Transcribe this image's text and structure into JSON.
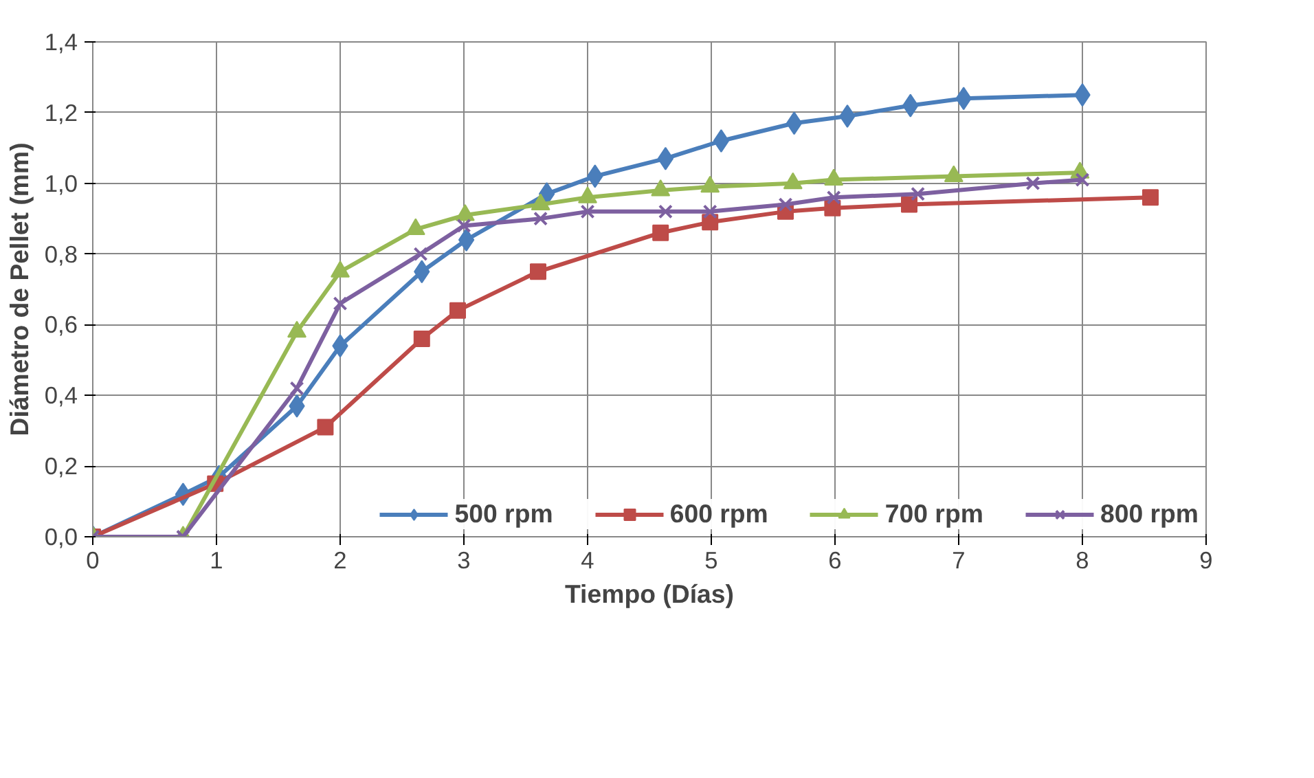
{
  "chart_data": {
    "type": "line",
    "xlabel": "Tiempo (Días)",
    "ylabel": "Diámetro de Pellet (mm)",
    "xlim": [
      0,
      9
    ],
    "xticks": [
      0,
      1,
      2,
      3,
      4,
      5,
      6,
      7,
      8,
      9
    ],
    "ylim": [
      0,
      1.4
    ],
    "yticks": [
      {
        "value": 0,
        "label": "0,0"
      },
      {
        "value": 0.2,
        "label": "0,2"
      },
      {
        "value": 0.4,
        "label": "0,4"
      },
      {
        "value": 0.6,
        "label": "0,6"
      },
      {
        "value": 0.8,
        "label": "0,8"
      },
      {
        "value": 1.0,
        "label": "1,0"
      },
      {
        "value": 1.2,
        "label": "1,2"
      },
      {
        "value": 1.4,
        "label": "1,4"
      }
    ],
    "grid": true,
    "legend": "bottom right",
    "series": [
      {
        "name": "500 rpm",
        "color": "#4a7ebb",
        "marker": "diamond",
        "x": [
          0,
          0.73,
          1.02,
          1.65,
          2.0,
          2.66,
          3.02,
          3.67,
          4.06,
          4.63,
          5.08,
          5.67,
          6.1,
          6.61,
          7.04,
          8.0
        ],
        "values": [
          0,
          0.12,
          0.17,
          0.37,
          0.54,
          0.75,
          0.84,
          0.97,
          1.02,
          1.07,
          1.12,
          1.17,
          1.19,
          1.22,
          1.24,
          1.25
        ]
      },
      {
        "name": "600 rpm",
        "color": "#be4b48",
        "marker": "square",
        "x": [
          0,
          0.99,
          1.88,
          2.66,
          2.95,
          3.6,
          4.59,
          4.99,
          5.6,
          5.98,
          6.6,
          8.55
        ],
        "values": [
          0,
          0.15,
          0.31,
          0.56,
          0.64,
          0.75,
          0.86,
          0.89,
          0.92,
          0.93,
          0.94,
          0.96
        ]
      },
      {
        "name": "700 rpm",
        "color": "#98b954",
        "marker": "triangle",
        "x": [
          0,
          0.73,
          1.65,
          2.0,
          2.61,
          3.01,
          3.62,
          4.0,
          4.59,
          4.99,
          5.66,
          5.99,
          6.96,
          7.98
        ],
        "values": [
          0,
          0,
          0.58,
          0.75,
          0.87,
          0.91,
          0.94,
          0.96,
          0.98,
          0.99,
          1.0,
          1.01,
          1.02,
          1.03
        ]
      },
      {
        "name": "800 rpm",
        "color": "#7d60a0",
        "marker": "cross",
        "x": [
          0,
          0.73,
          1.65,
          2.0,
          2.65,
          3.0,
          3.62,
          4.0,
          4.63,
          4.99,
          5.6,
          5.99,
          6.67,
          7.6,
          8.0
        ],
        "values": [
          0,
          0,
          0.42,
          0.66,
          0.8,
          0.88,
          0.9,
          0.92,
          0.92,
          0.92,
          0.94,
          0.96,
          0.97,
          1.0,
          1.01
        ]
      }
    ]
  }
}
